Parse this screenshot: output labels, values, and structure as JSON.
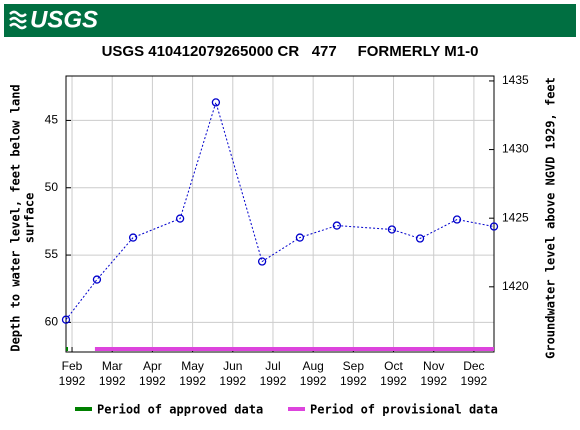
{
  "header": {
    "logo": "USGS"
  },
  "chart_data": {
    "type": "line",
    "title": "USGS 410412079265000 CR   477     FORMERLY M1-0",
    "ylabel": [
      "Depth to water level, feet below land",
      "surface"
    ],
    "y2label": "Groundwater level above NGVD 1929, feet",
    "x": [
      1.85,
      2.62,
      3.52,
      4.69,
      5.58,
      6.73,
      7.67,
      8.59,
      9.96,
      10.66,
      11.58,
      12.5
    ],
    "series": [
      {
        "name": "Depth to water level",
        "color": "#0000cc",
        "values": [
          59.8,
          56.82,
          53.7,
          52.29,
          43.66,
          55.48,
          53.7,
          52.81,
          53.1,
          53.77,
          52.36,
          52.88
        ]
      }
    ],
    "xlim": [
      1.85,
      12.5
    ],
    "xticks": [
      {
        "value": 2,
        "label": "Feb\n1992"
      },
      {
        "value": 3,
        "label": "Mar\n1992"
      },
      {
        "value": 4,
        "label": "Apr\n1992"
      },
      {
        "value": 5,
        "label": "May\n1992"
      },
      {
        "value": 6,
        "label": "Jun\n1992"
      },
      {
        "value": 7,
        "label": "Jul\n1992"
      },
      {
        "value": 8,
        "label": "Aug\n1992"
      },
      {
        "value": 9,
        "label": "Sep\n1992"
      },
      {
        "value": 10,
        "label": "Oct\n1992"
      },
      {
        "value": 11,
        "label": "Nov\n1992"
      },
      {
        "value": 12,
        "label": "Dec\n1992"
      }
    ],
    "ylim": [
      41.7,
      62.2
    ],
    "y_inverted": true,
    "yticks": [
      45,
      50,
      55,
      60
    ],
    "y2lim": [
      1415.25,
      1435.36
    ],
    "y2ticks": [
      1420,
      1425,
      1430,
      1435
    ],
    "grid": true,
    "periods": [
      {
        "name": "Period of approved data",
        "color": "#008000",
        "start": 1.85,
        "end": 1.9
      },
      {
        "name": "Period of provisional data",
        "color": "#dd44dd",
        "start": 2.57,
        "end": 12.5
      }
    ]
  }
}
